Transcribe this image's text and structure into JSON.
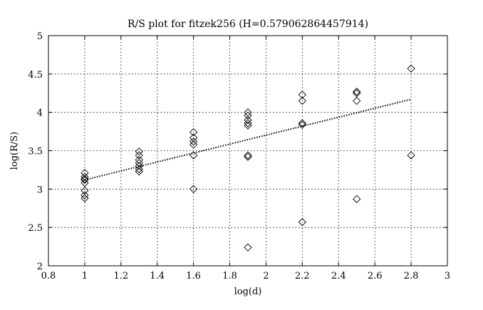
{
  "chart_data": {
    "type": "scatter",
    "title": "R/S plot for fitzek256 (H=0.579062864457914)",
    "xlabel": "log(d)",
    "ylabel": "log(R/S)",
    "xlim": [
      0.8,
      3
    ],
    "ylim": [
      2,
      5
    ],
    "xticks": [
      0.8,
      1,
      1.2,
      1.4,
      1.6,
      1.8,
      2,
      2.2,
      2.4,
      2.6,
      2.8,
      3
    ],
    "xtick_labels": [
      "0.8",
      "1",
      "1.2",
      "1.4",
      "1.6",
      "1.8",
      "2",
      "2.2",
      "2.4",
      "2.6",
      "2.8",
      "3"
    ],
    "yticks": [
      2,
      2.5,
      3,
      3.5,
      4,
      4.5,
      5
    ],
    "ytick_labels": [
      "2",
      "2.5",
      "3",
      "3.5",
      "4",
      "4.5",
      "5"
    ],
    "grid": true,
    "marker": "diamond",
    "series": [
      {
        "values": [
          {
            "x": 1.0,
            "y": 3.21
          },
          {
            "x": 1.0,
            "y": 3.16
          },
          {
            "x": 1.0,
            "y": 3.13
          },
          {
            "x": 1.0,
            "y": 3.12
          },
          {
            "x": 1.0,
            "y": 3.08
          },
          {
            "x": 1.0,
            "y": 2.98
          },
          {
            "x": 1.0,
            "y": 2.92
          },
          {
            "x": 1.0,
            "y": 2.88
          },
          {
            "x": 1.3,
            "y": 3.49
          },
          {
            "x": 1.3,
            "y": 3.44
          },
          {
            "x": 1.3,
            "y": 3.38
          },
          {
            "x": 1.3,
            "y": 3.34
          },
          {
            "x": 1.3,
            "y": 3.3
          },
          {
            "x": 1.3,
            "y": 3.26
          },
          {
            "x": 1.3,
            "y": 3.23
          },
          {
            "x": 1.6,
            "y": 3.74
          },
          {
            "x": 1.6,
            "y": 3.67
          },
          {
            "x": 1.6,
            "y": 3.62
          },
          {
            "x": 1.6,
            "y": 3.58
          },
          {
            "x": 1.6,
            "y": 3.44
          },
          {
            "x": 1.6,
            "y": 3.0
          },
          {
            "x": 1.9,
            "y": 4.0
          },
          {
            "x": 1.9,
            "y": 3.96
          },
          {
            "x": 1.9,
            "y": 3.9
          },
          {
            "x": 1.9,
            "y": 3.86
          },
          {
            "x": 1.9,
            "y": 3.83
          },
          {
            "x": 1.9,
            "y": 3.44
          },
          {
            "x": 1.9,
            "y": 3.42
          },
          {
            "x": 1.9,
            "y": 2.24
          },
          {
            "x": 2.2,
            "y": 4.23
          },
          {
            "x": 2.2,
            "y": 4.15
          },
          {
            "x": 2.2,
            "y": 3.86
          },
          {
            "x": 2.2,
            "y": 3.84
          },
          {
            "x": 2.2,
            "y": 2.57
          },
          {
            "x": 2.5,
            "y": 4.27
          },
          {
            "x": 2.5,
            "y": 4.25
          },
          {
            "x": 2.5,
            "y": 4.15
          },
          {
            "x": 2.5,
            "y": 2.87
          },
          {
            "x": 2.8,
            "y": 4.57
          },
          {
            "x": 2.8,
            "y": 3.44
          }
        ]
      }
    ],
    "fit_line": {
      "style": "dotted",
      "x": [
        1.0,
        2.8
      ],
      "y": [
        3.12,
        4.17
      ]
    }
  }
}
